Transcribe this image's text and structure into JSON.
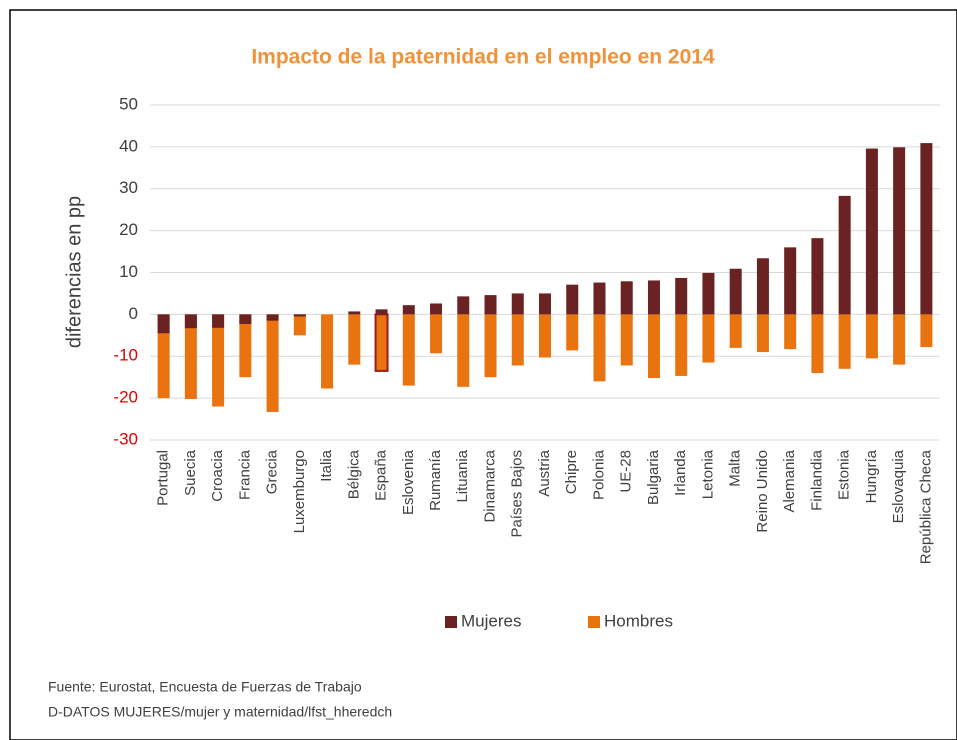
{
  "chart_data": {
    "type": "bar",
    "title": "Impacto de la paternidad en el empleo en 2014",
    "y_label": "diferencias en pp",
    "categories": [
      "Portugal",
      "Suecia",
      "Croacia",
      "Francia",
      "Grecia",
      "Luxemburgo",
      "Italia",
      "Bélgica",
      "España",
      "Eslovenia",
      "Rumanía",
      "Lituania",
      "Dinamarca",
      "Países Bajos",
      "Austria",
      "Chipre",
      "Polonia",
      "UE-28",
      "Bulgaria",
      "Irlanda",
      "Letonia",
      "Malta",
      "Reino Unido",
      "Alemania",
      "Finlandia",
      "Estonia",
      "Hungría",
      "Eslovaquia",
      "República Checa"
    ],
    "series": [
      {
        "name": "Hombres",
        "color": "#e8730f",
        "values": [
          -20,
          -20.2,
          -22,
          -15,
          -23.3,
          -5,
          -17.7,
          -12,
          -13.5,
          -17,
          -9.3,
          -17.3,
          -15,
          -12.2,
          -10.3,
          -8.6,
          -16,
          -12.2,
          -15.2,
          -14.7,
          -11.5,
          -8,
          -9,
          -8.3,
          -14,
          -13,
          -10.5,
          -12,
          -7.8
        ]
      },
      {
        "name": "Mujeres",
        "color": "#6b2222",
        "values": [
          -4.5,
          -3.3,
          -3.2,
          -2.3,
          -1.5,
          -0.5,
          0,
          0.7,
          1.2,
          2.2,
          2.6,
          4.3,
          4.6,
          5,
          5,
          7.1,
          7.6,
          7.9,
          8.1,
          8.7,
          9.9,
          10.9,
          13.4,
          16,
          18.2,
          28.3,
          39.6,
          39.9,
          40.9
        ]
      }
    ],
    "legend_order": [
      1,
      0
    ],
    "highlight_index": 8,
    "highlight_color": "#9b1c1c",
    "negative_tick_color": "#e00000",
    "ylim": [
      -30,
      50
    ],
    "yticks": [
      -30,
      -20,
      -10,
      0,
      10,
      20,
      30,
      40,
      50
    ],
    "grid": true,
    "notes": [
      "Fuente: Eurostat, Encuesta de Fuerzas de Trabajo",
      "D-DATOS MUJERES/mujer y maternidad/lfst_hheredch"
    ]
  }
}
